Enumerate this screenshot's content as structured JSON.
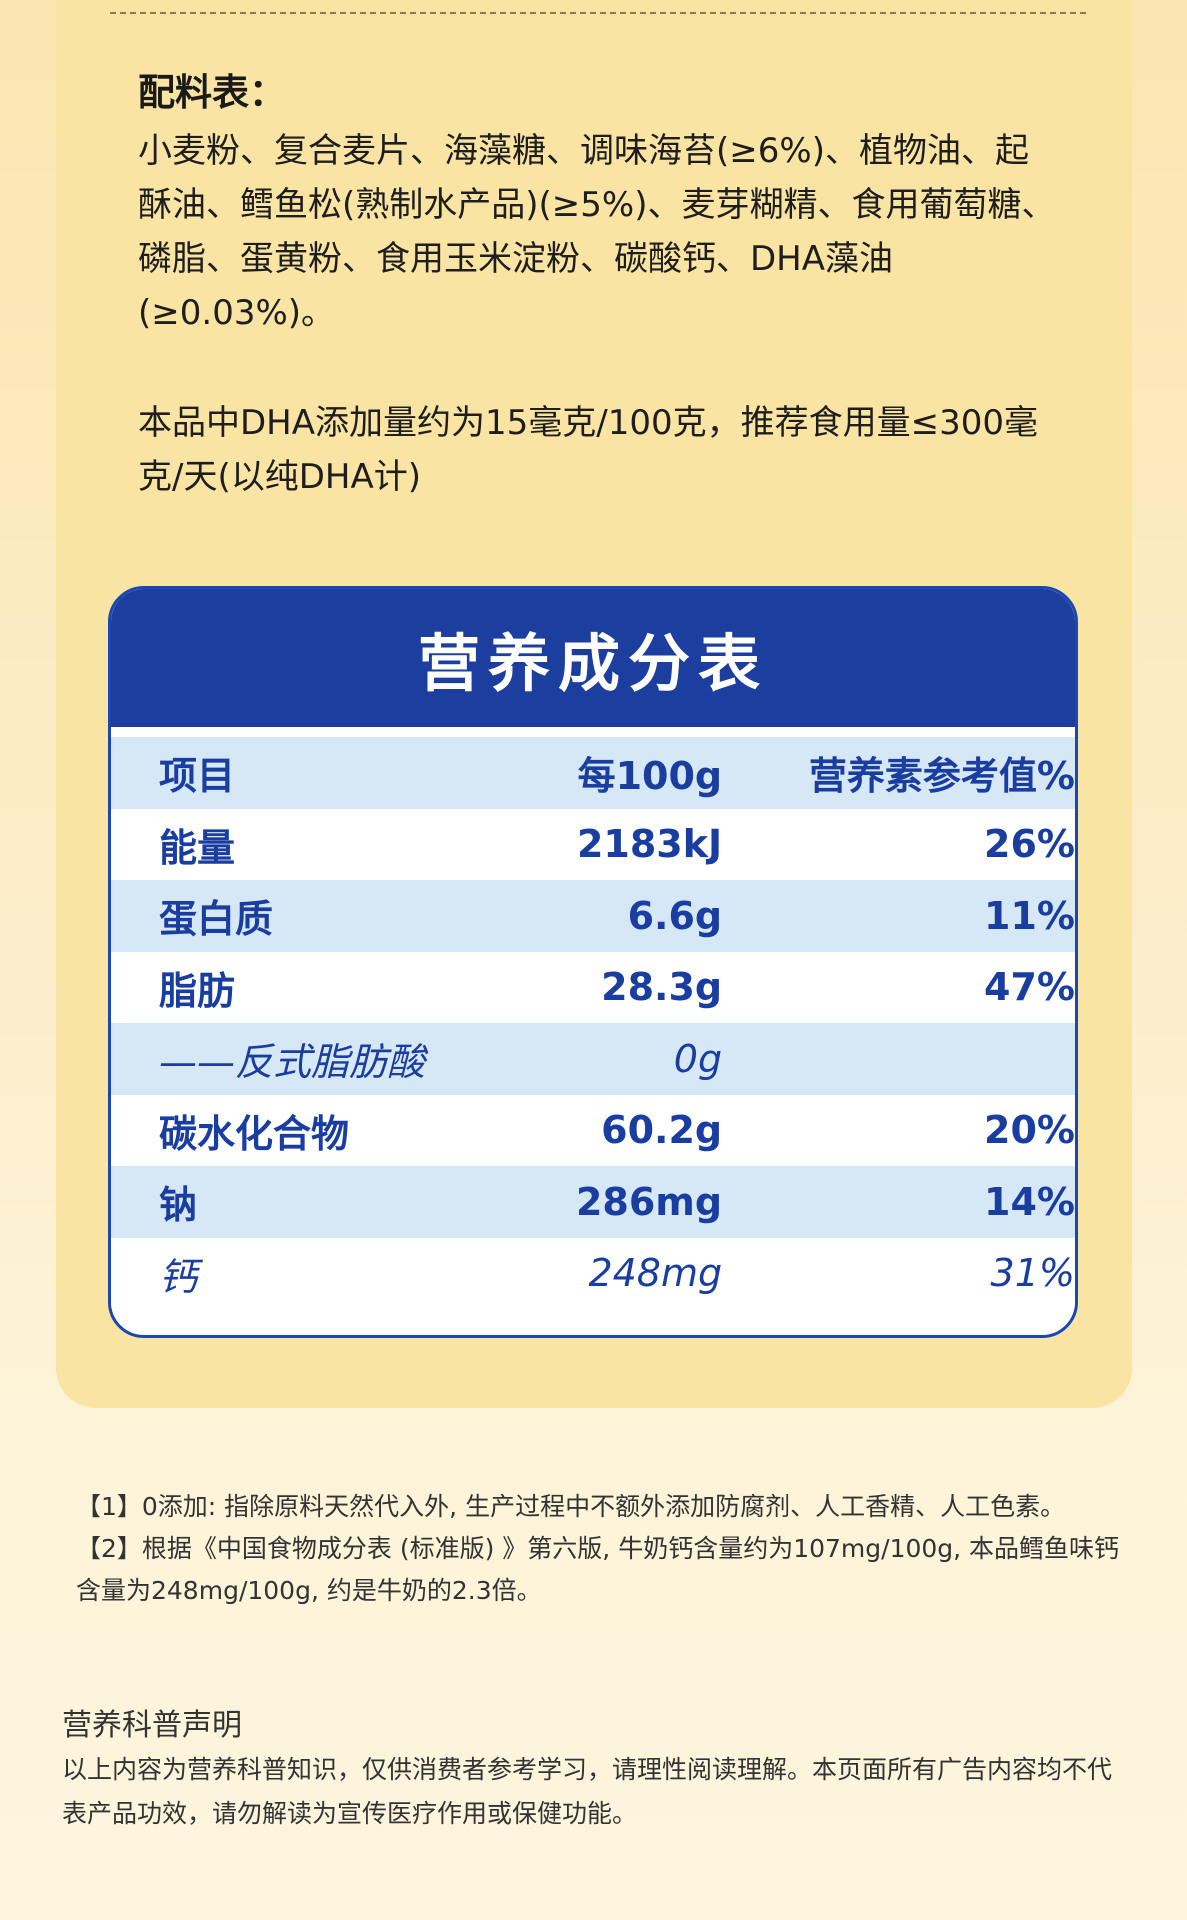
{
  "ingredients": {
    "title": "配料表：",
    "body": "小麦粉、复合麦片、海藻糖、调味海苔(≥6%)、植物油、起酥油、鳕鱼松(熟制水产品)(≥5%)、麦芽糊精、食用葡萄糖、磷脂、蛋黄粉、食用玉米淀粉、碳酸钙、DHA藻油(≥0.03%)。",
    "dha_note": "本品中DHA添加量约为15毫克/100克，推荐食用量≤300毫克/天(以纯DHA计)"
  },
  "nutrition": {
    "title": "营养成分表",
    "header": {
      "item": "项目",
      "per100g": "每100g",
      "nrv": "营养素参考值%"
    },
    "rows": [
      {
        "item": "能量",
        "value": "2183kJ",
        "nrv": "26%"
      },
      {
        "item": "蛋白质",
        "value": "6.6g",
        "nrv": "11%"
      },
      {
        "item": "脂肪",
        "value": "28.3g",
        "nrv": "47%"
      },
      {
        "item": "——反式脂肪酸",
        "value": "0g",
        "nrv": ""
      },
      {
        "item": "碳水化合物",
        "value": "60.2g",
        "nrv": "20%"
      },
      {
        "item": "钠",
        "value": "286mg",
        "nrv": "14%"
      },
      {
        "item": "钙",
        "value": "248mg",
        "nrv": "31%"
      }
    ]
  },
  "footnotes": [
    "【1】0添加: 指除原料天然代入外, 生产过程中不额外添加防腐剂、人工香精、人工色素。",
    "【2】根据《中国食物成分表 (标准版) 》第六版, 牛奶钙含量约为107mg/100g, 本品鳕鱼味钙含量为248mg/100g, 约是牛奶的2.3倍。"
  ],
  "declaration": {
    "title": "营养科普声明",
    "body": "以上内容为营养科普知识，仅供消费者参考学习，请理性阅读理解。本页面所有广告内容均不代表产品功效，请勿解读为宣传医疗作用或保健功能。"
  }
}
